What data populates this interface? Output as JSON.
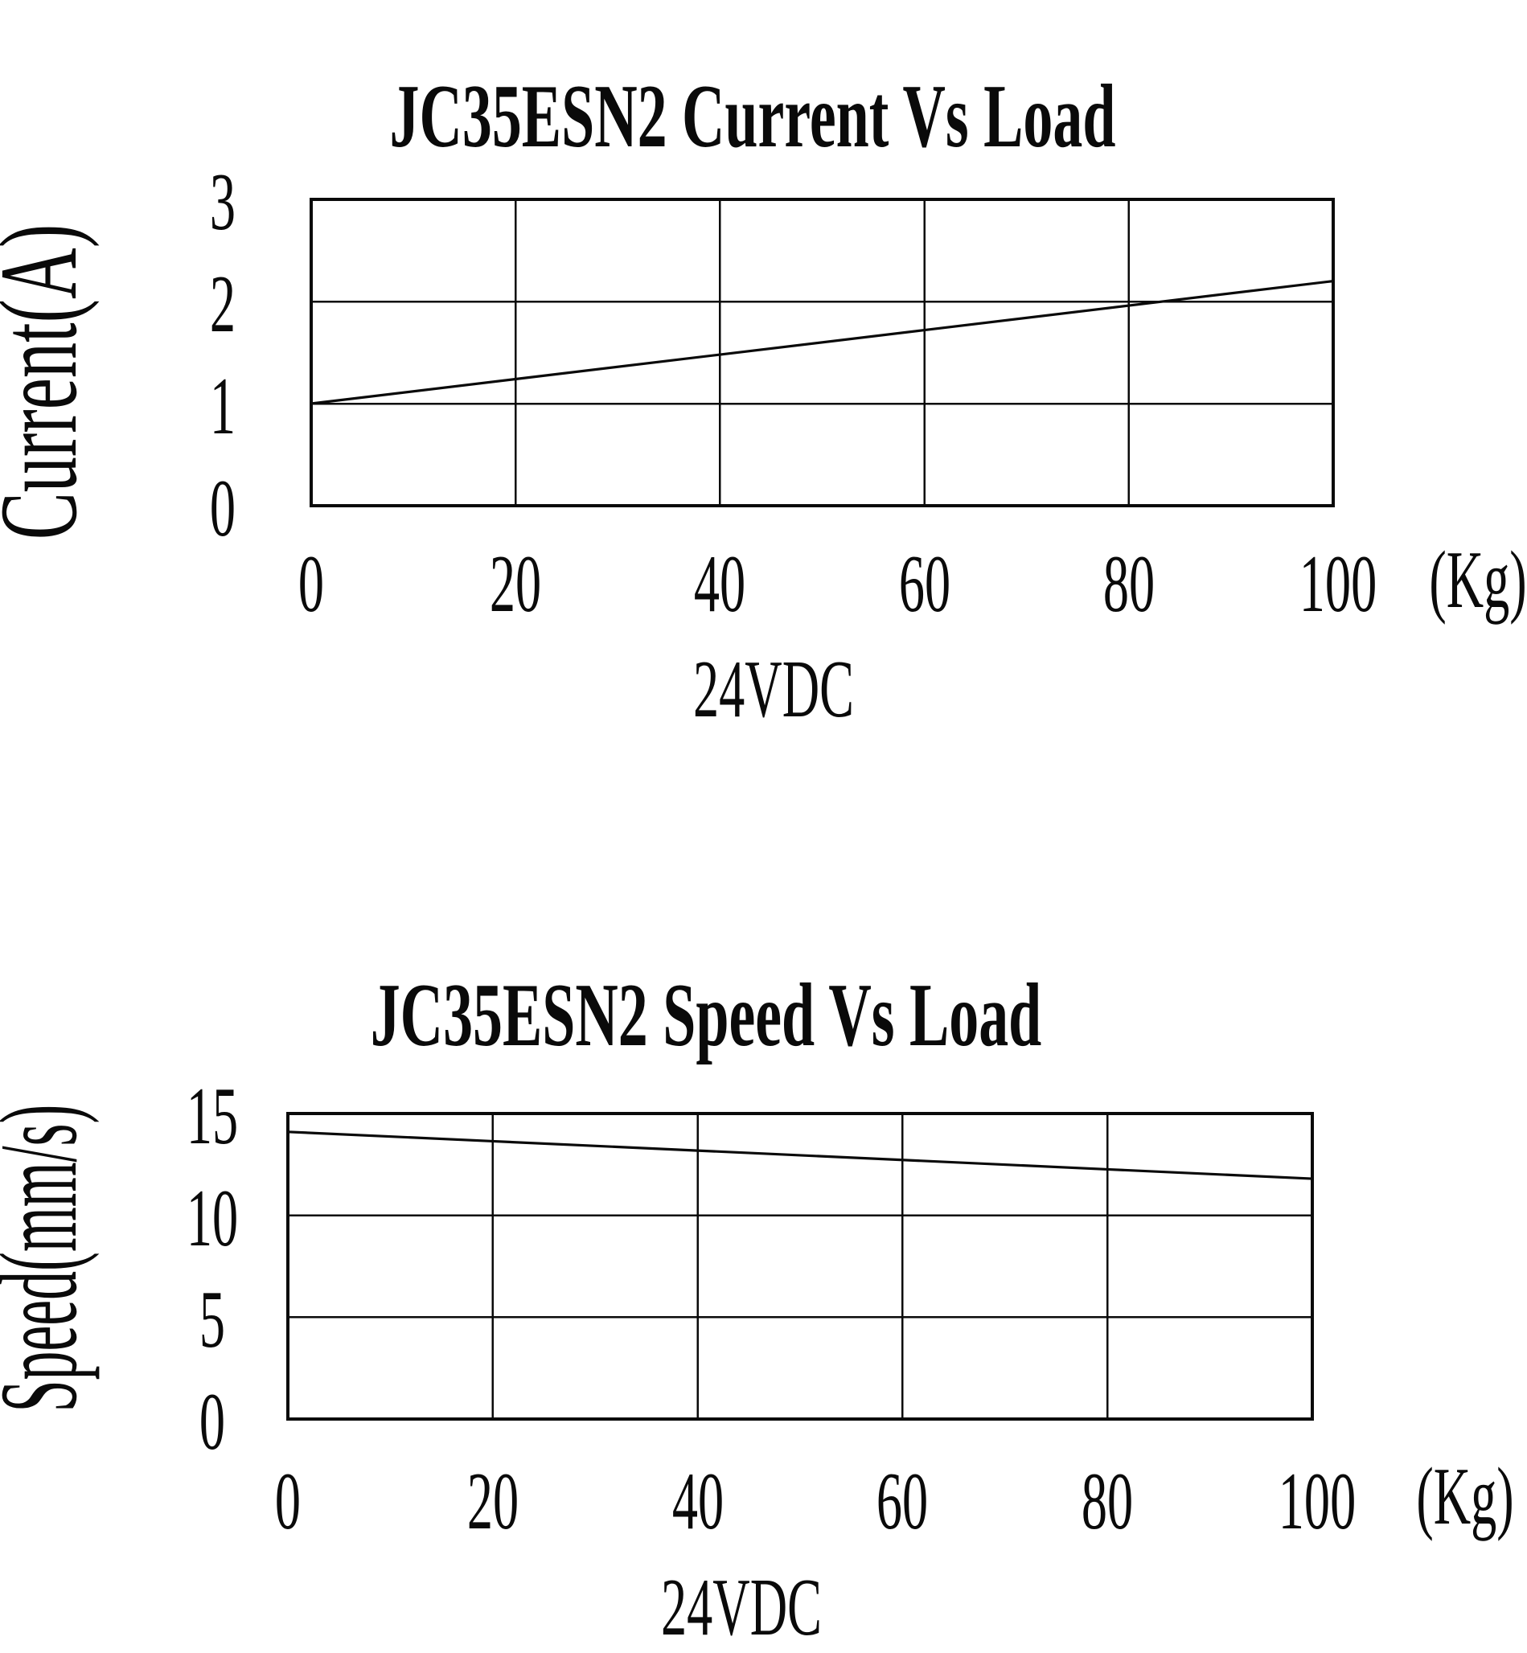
{
  "figure": {
    "background_color": "#ffffff",
    "ink_color": "#0a0a0a"
  },
  "chart_data": [
    {
      "type": "line",
      "title": "JC35ESN2 Current Vs Load",
      "ylabel": "Current(A)",
      "xunit_label": "(Kg)",
      "caption": "24VDC",
      "x": [
        0,
        20,
        40,
        60,
        80,
        100
      ],
      "series": [
        {
          "name": "Current",
          "values": [
            1.0,
            1.24,
            1.48,
            1.72,
            1.96,
            2.2
          ]
        }
      ],
      "xlim": [
        0,
        100
      ],
      "ylim": [
        0,
        3
      ],
      "xticks": [
        "0",
        "20",
        "40",
        "60",
        "80",
        "100"
      ],
      "yticks": [
        "3",
        "2",
        "1",
        "0"
      ],
      "ytick_values": [
        3,
        2,
        1,
        0
      ],
      "grid": true,
      "legend": "none",
      "line_color": "#0a0a0a"
    },
    {
      "type": "line",
      "title": "JC35ESN2 Speed Vs Load",
      "ylabel": "Speed(mm/s)",
      "xunit_label": "(Kg)",
      "caption": "24VDC",
      "x": [
        0,
        20,
        40,
        60,
        80,
        100
      ],
      "series": [
        {
          "name": "Speed",
          "values": [
            14.1,
            13.64,
            13.18,
            12.72,
            12.26,
            11.8
          ]
        }
      ],
      "xlim": [
        0,
        100
      ],
      "ylim": [
        0,
        15
      ],
      "xticks": [
        "0",
        "20",
        "40",
        "60",
        "80",
        "100"
      ],
      "yticks": [
        "15",
        "10",
        "5",
        "0"
      ],
      "ytick_values": [
        15,
        10,
        5,
        0
      ],
      "grid": true,
      "legend": "none",
      "line_color": "#0a0a0a"
    }
  ]
}
